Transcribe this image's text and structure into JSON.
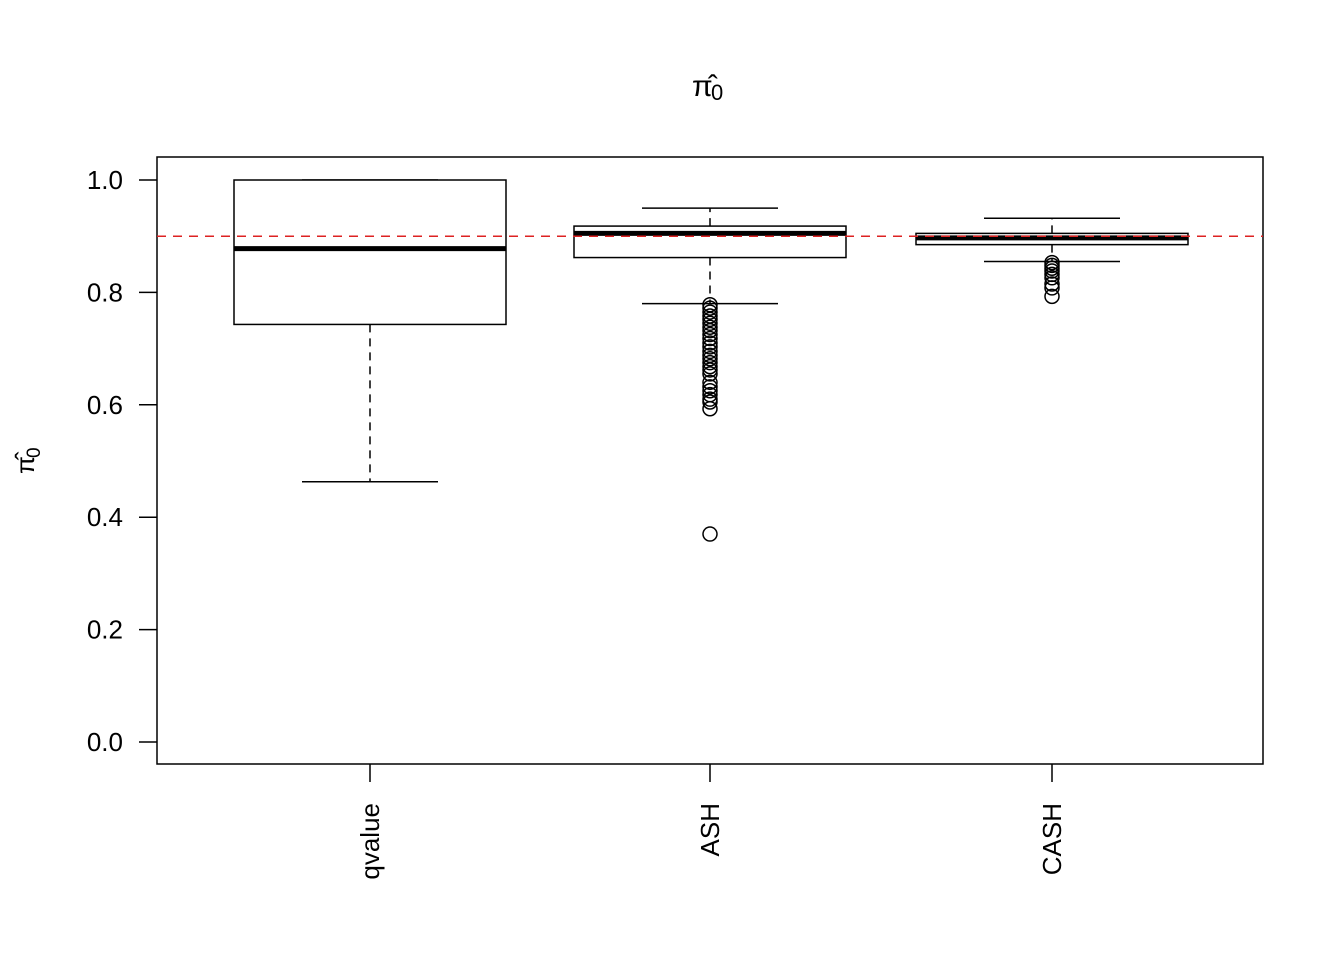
{
  "chart_data": {
    "type": "boxplot",
    "title": "π̂0",
    "title_main": "π̂",
    "title_sub": "0",
    "ylabel_main": "π̂",
    "ylabel_sub": "0",
    "xlabel": "",
    "ylim": [
      0.0,
      1.04
    ],
    "y_ticks": [
      "0.0",
      "0.2",
      "0.4",
      "0.6",
      "0.8",
      "1.0"
    ],
    "y_tick_values": [
      0.0,
      0.2,
      0.4,
      0.6,
      0.8,
      1.0
    ],
    "categories": [
      "qvalue",
      "ASH",
      "CASH"
    ],
    "boxes": [
      {
        "name": "qvalue",
        "whisker_low": 0.463,
        "q1": 0.743,
        "median": 0.878,
        "q3": 1.0,
        "whisker_high": 1.0,
        "outliers": []
      },
      {
        "name": "ASH",
        "whisker_low": 0.78,
        "q1": 0.862,
        "median": 0.905,
        "q3": 0.918,
        "whisker_high": 0.95,
        "outliers": [
          0.778,
          0.772,
          0.765,
          0.758,
          0.752,
          0.745,
          0.738,
          0.732,
          0.725,
          0.718,
          0.71,
          0.703,
          0.695,
          0.688,
          0.682,
          0.675,
          0.668,
          0.662,
          0.655,
          0.64,
          0.632,
          0.625,
          0.618,
          0.61,
          0.605,
          0.593,
          0.37
        ]
      },
      {
        "name": "CASH",
        "whisker_low": 0.855,
        "q1": 0.885,
        "median": 0.897,
        "q3": 0.905,
        "whisker_high": 0.932,
        "outliers": [
          0.853,
          0.848,
          0.843,
          0.838,
          0.832,
          0.826,
          0.815,
          0.808,
          0.793
        ]
      }
    ],
    "reference_line": {
      "y": 0.9,
      "color": "#dd2222",
      "style": "dashed"
    },
    "grid": false,
    "legend": "none"
  }
}
